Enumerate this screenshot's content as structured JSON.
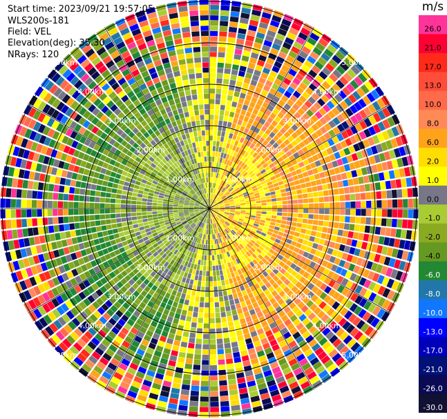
{
  "header": {
    "start_time": "Start time: 2023/09/21 19:57:05",
    "instrument": "WLS200s-181",
    "field": "Field: VEL",
    "elevation": "Elevation(deg): 35.30",
    "nrays": "NRays: 120"
  },
  "colorbar": {
    "units": "m/s",
    "levels": [
      {
        "label": "26.0",
        "color": "#ff3399"
      },
      {
        "label": "21.0",
        "color": "#ff0033"
      },
      {
        "label": "17.0",
        "color": "#ff2a1a"
      },
      {
        "label": "13.0",
        "color": "#ff4d3a"
      },
      {
        "label": "10.0",
        "color": "#ff6b4a"
      },
      {
        "label": "8.0",
        "color": "#ff8a55"
      },
      {
        "label": "6.0",
        "color": "#ffa31a"
      },
      {
        "label": "2.0",
        "color": "#ffdd00"
      },
      {
        "label": "1.0",
        "color": "#ffff00"
      },
      {
        "label": "0.0",
        "color": "#777788"
      },
      {
        "label": "-1.0",
        "color": "#aacc33"
      },
      {
        "label": "-2.0",
        "color": "#8aaa22"
      },
      {
        "label": "-4.0",
        "color": "#669922"
      },
      {
        "label": "-6.0",
        "color": "#228833"
      },
      {
        "label": "-8.0",
        "color": "#2277aa"
      },
      {
        "label": "-10.0",
        "color": "#1177ff"
      },
      {
        "label": "-13.0",
        "color": "#0000ff"
      },
      {
        "label": "-17.0",
        "color": "#0000bb"
      },
      {
        "label": "-21.0",
        "color": "#001177"
      },
      {
        "label": "-26.0",
        "color": "#0a0a55"
      },
      {
        "label": "-30.0",
        "color": "#111133"
      }
    ]
  },
  "chart_data": {
    "type": "heatmap",
    "nrays": 120,
    "range_ring_labels": [
      "1.00km",
      "2.00km",
      "3.00km",
      "4.00km",
      "5.00km"
    ],
    "range_rings_km": [
      1,
      2,
      3,
      4,
      5
    ],
    "max_range_km": 5.0,
    "spoke_angles_deg": [
      0,
      30,
      60,
      90,
      120,
      150,
      180,
      210,
      240,
      270,
      300,
      330
    ]
  }
}
